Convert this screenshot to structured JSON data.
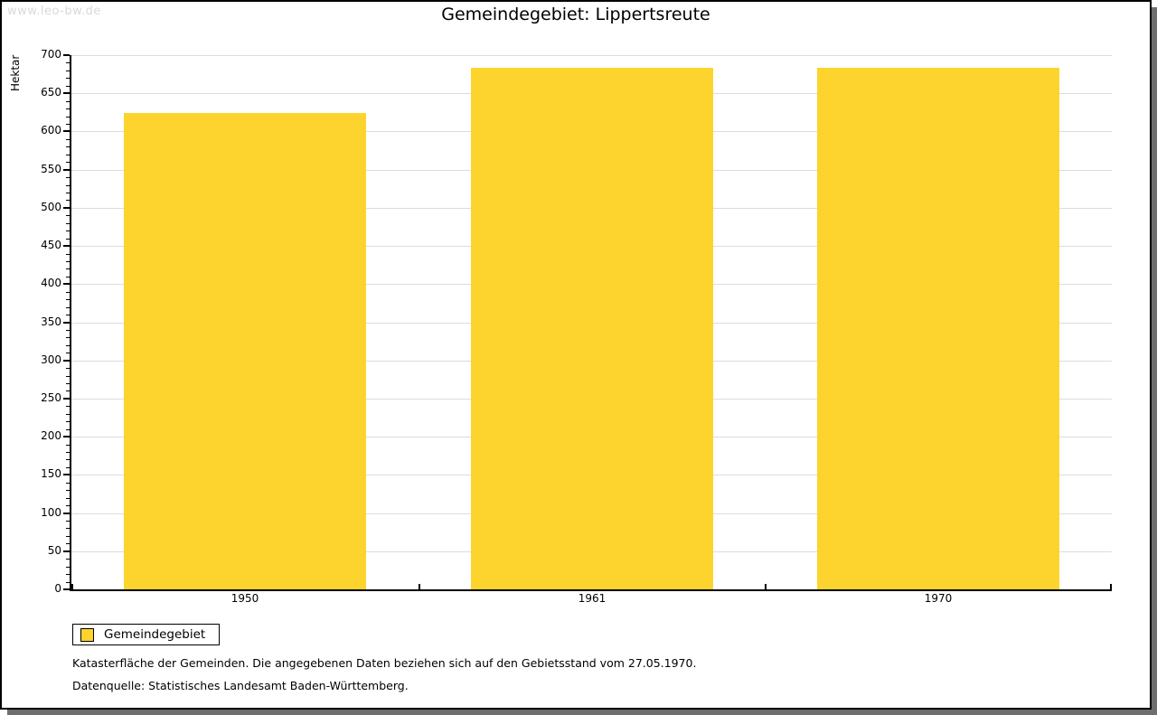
{
  "watermark": "www.leo-bw.de",
  "chart_data": {
    "type": "bar",
    "title": "Gemeindegebiet: Lippertsreute",
    "ylabel": "Hektar",
    "xlabel": "",
    "categories": [
      "1950",
      "1961",
      "1970"
    ],
    "series": [
      {
        "name": "Gemeindegebiet",
        "values": [
          624,
          684,
          684
        ]
      }
    ],
    "ylim": [
      0,
      700
    ],
    "ytick_major_step": 50,
    "ytick_minor_step": 10,
    "grid": "horizontal-major-only",
    "legend_position": "bottom-left",
    "bar_color": "#fdd42e",
    "grid_color": "#dcdcdc",
    "axis_color": "#000000"
  },
  "legend": {
    "items": [
      {
        "label": "Gemeindegebiet",
        "color": "#fdd42e"
      }
    ]
  },
  "footnotes": [
    "Katasterfläche der Gemeinden. Die angegebenen Daten beziehen sich auf den Gebietsstand vom 27.05.1970.",
    "Datenquelle: Statistisches Landesamt Baden-Württemberg."
  ]
}
